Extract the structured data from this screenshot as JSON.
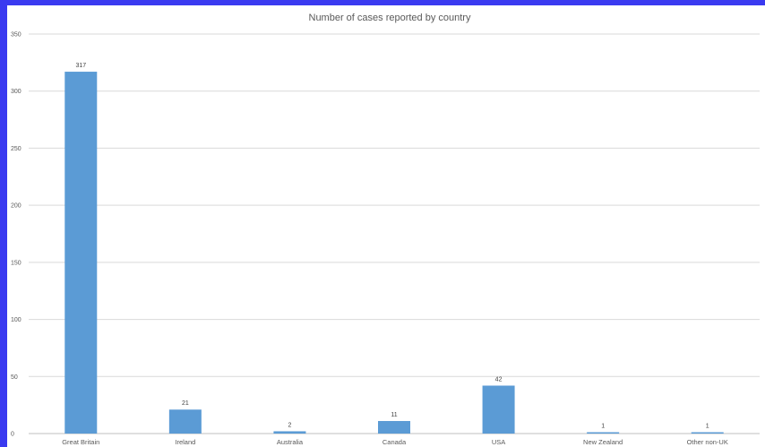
{
  "colors": {
    "border": "#3a3af0",
    "background": "#ffffff",
    "bar": "#5b9bd5",
    "gridline": "#d9d9d9",
    "text": "#595959"
  },
  "chart_data": {
    "type": "bar",
    "title": "Number of cases reported by country",
    "xlabel": "",
    "ylabel": "",
    "categories": [
      "Great Britain",
      "Ireland",
      "Australia",
      "Canada",
      "USA",
      "New Zealand",
      "Other non-UK"
    ],
    "values": [
      317,
      21,
      2,
      11,
      42,
      1,
      1
    ],
    "ylim": [
      0,
      350
    ],
    "yticks": [
      0,
      50,
      100,
      150,
      200,
      250,
      300,
      350
    ],
    "grid": true,
    "legend": "none",
    "data_labels": true
  }
}
